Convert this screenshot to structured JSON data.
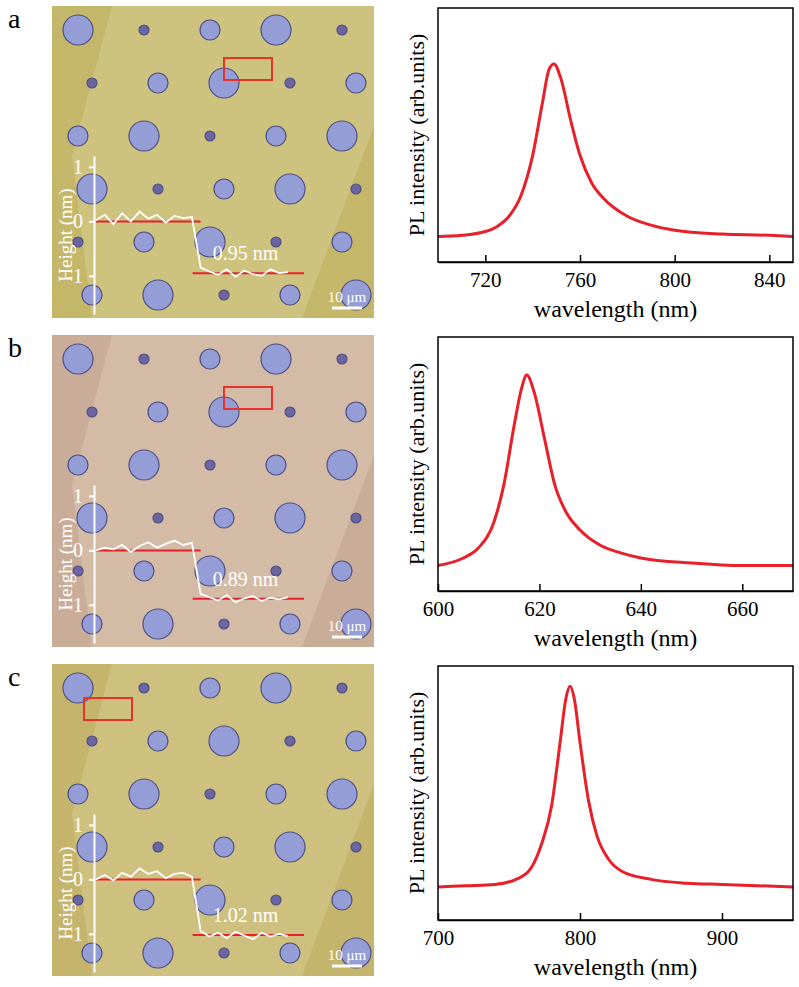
{
  "chart_data": [
    {
      "type": "image",
      "panel_label": "a",
      "scale_bar": "10 μm",
      "inset": {
        "type": "line",
        "ylabel": "Height (nm)",
        "color": "#ffffff",
        "x": [
          0,
          4,
          8,
          12,
          16,
          20,
          24,
          28,
          32,
          36,
          40,
          44,
          48,
          52,
          56,
          60,
          64,
          68,
          72,
          76,
          80,
          84,
          88
        ],
        "values": [
          0.02,
          0.12,
          -0.05,
          0.15,
          0.0,
          0.18,
          0.05,
          0.12,
          -0.02,
          0.1,
          0.06,
          0.08,
          -0.85,
          -0.92,
          -0.98,
          -0.88,
          -1.02,
          -0.9,
          -0.97,
          -1.0,
          -0.88,
          -0.95,
          -0.93
        ],
        "xlim": [
          0,
          100
        ],
        "ylim": [
          -1.7,
          1.2
        ],
        "yticks": [
          1,
          0,
          -1
        ],
        "tick_labels": "y",
        "levels": [
          0,
          -0.95
        ],
        "annotation": "0.95 nm"
      }
    },
    {
      "type": "line",
      "xlabel": "wavelength (nm)",
      "ylabel": "PL intensity (arb.units)",
      "color": "#e8202a",
      "x": [
        700,
        710,
        720,
        725,
        730,
        735,
        740,
        744,
        747,
        749,
        752,
        756,
        760,
        765,
        770,
        780,
        790,
        800,
        820,
        840,
        850
      ],
      "values": [
        0.1,
        0.105,
        0.12,
        0.14,
        0.18,
        0.26,
        0.42,
        0.62,
        0.76,
        0.78,
        0.72,
        0.56,
        0.42,
        0.31,
        0.25,
        0.18,
        0.145,
        0.125,
        0.11,
        0.105,
        0.1
      ],
      "xlim": [
        700,
        850
      ],
      "xticks": [
        720,
        760,
        800,
        840
      ],
      "ylim": [
        0,
        1
      ],
      "tick_labels": "x"
    },
    {
      "type": "image",
      "panel_label": "b",
      "scale_bar": "10 μm",
      "inset": {
        "type": "line",
        "ylabel": "Height (nm)",
        "color": "#ffffff",
        "x": [
          0,
          4,
          8,
          12,
          16,
          20,
          24,
          28,
          32,
          36,
          40,
          44,
          48,
          52,
          56,
          60,
          64,
          68,
          72,
          76,
          80,
          84,
          88
        ],
        "values": [
          0.0,
          0.05,
          0.02,
          0.1,
          -0.03,
          0.08,
          0.15,
          0.05,
          0.12,
          0.18,
          0.1,
          0.14,
          -0.8,
          -0.86,
          -0.92,
          -0.82,
          -0.95,
          -0.88,
          -0.84,
          -0.93,
          -0.87,
          -0.9,
          -0.86
        ],
        "xlim": [
          0,
          100
        ],
        "ylim": [
          -1.7,
          1.2
        ],
        "yticks": [
          1,
          0,
          -1
        ],
        "tick_labels": "y",
        "levels": [
          0,
          -0.89
        ],
        "annotation": "0.89 nm"
      }
    },
    {
      "type": "line",
      "xlabel": "wavelength (nm)",
      "ylabel": "PL intensity (arb.units)",
      "color": "#e8202a",
      "x": [
        600,
        605,
        608,
        611,
        613,
        615,
        616.5,
        617.5,
        619,
        621,
        623,
        625,
        628,
        632,
        636,
        640,
        650,
        660,
        670
      ],
      "values": [
        0.1,
        0.13,
        0.17,
        0.27,
        0.42,
        0.65,
        0.8,
        0.85,
        0.78,
        0.6,
        0.42,
        0.32,
        0.24,
        0.18,
        0.15,
        0.13,
        0.11,
        0.1,
        0.1
      ],
      "xlim": [
        600,
        670
      ],
      "xticks": [
        600,
        620,
        640,
        660
      ],
      "ylim": [
        0,
        1
      ],
      "tick_labels": "x"
    },
    {
      "type": "image",
      "panel_label": "c",
      "scale_bar": "10 μm",
      "inset": {
        "type": "line",
        "ylabel": "Height (nm)",
        "color": "#ffffff",
        "x": [
          0,
          4,
          8,
          12,
          16,
          20,
          24,
          28,
          32,
          36,
          40,
          44,
          48,
          52,
          56,
          60,
          64,
          68,
          72,
          76,
          80,
          84,
          88
        ],
        "values": [
          0.0,
          0.08,
          -0.02,
          0.12,
          0.05,
          0.2,
          0.1,
          0.15,
          0.02,
          0.1,
          0.12,
          0.05,
          -0.95,
          -1.05,
          -0.98,
          -1.08,
          -0.96,
          -1.03,
          -1.1,
          -0.98,
          -1.05,
          -1.0,
          -1.04
        ],
        "xlim": [
          0,
          100
        ],
        "ylim": [
          -1.7,
          1.2
        ],
        "yticks": [
          1,
          0,
          -1
        ],
        "tick_labels": "y",
        "levels": [
          0,
          -1.02
        ],
        "annotation": "1.02 nm"
      }
    },
    {
      "type": "line",
      "xlabel": "wavelength (nm)",
      "ylabel": "PL intensity (arb.units)",
      "color": "#e8202a",
      "x": [
        700,
        720,
        740,
        755,
        765,
        773,
        780,
        786,
        790,
        793,
        796,
        800,
        806,
        812,
        820,
        830,
        850,
        875,
        900,
        950
      ],
      "values": [
        0.13,
        0.135,
        0.14,
        0.16,
        0.2,
        0.3,
        0.45,
        0.7,
        0.87,
        0.92,
        0.87,
        0.7,
        0.47,
        0.33,
        0.24,
        0.19,
        0.16,
        0.145,
        0.14,
        0.13
      ],
      "xlim": [
        700,
        950
      ],
      "xticks": [
        700,
        800,
        900
      ],
      "ylim": [
        0,
        1
      ],
      "tick_labels": "x"
    }
  ]
}
